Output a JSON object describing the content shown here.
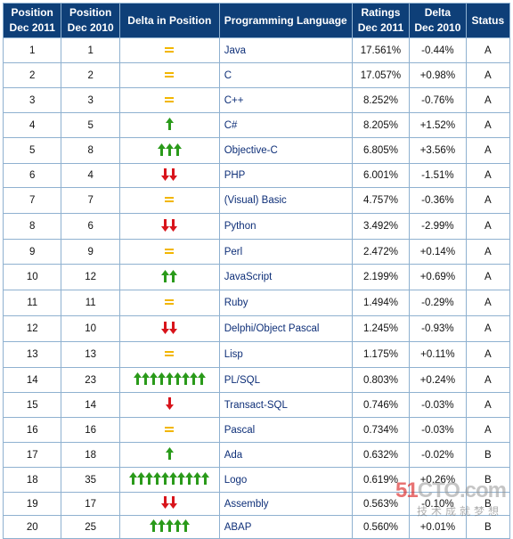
{
  "headers": {
    "pos2011": [
      "Position",
      "Dec 2011"
    ],
    "pos2010": [
      "Position",
      "Dec 2010"
    ],
    "delta_position": "Delta in Position",
    "language": "Programming Language",
    "ratings": [
      "Ratings",
      "Dec 2011"
    ],
    "delta": [
      "Delta",
      "Dec 2010"
    ],
    "status": "Status"
  },
  "colors": {
    "header_bg": "#0e3f78",
    "up": "#2a9a1a",
    "down": "#d8141b",
    "same": "#f2b600",
    "border": "#8fb1d0"
  },
  "rows": [
    {
      "pos2011": "1",
      "pos2010": "1",
      "change": {
        "dir": "same",
        "count": 1
      },
      "language": "Java",
      "rating": "17.561%",
      "delta": "-0.44%",
      "status": "A"
    },
    {
      "pos2011": "2",
      "pos2010": "2",
      "change": {
        "dir": "same",
        "count": 1
      },
      "language": "C",
      "rating": "17.057%",
      "delta": "+0.98%",
      "status": "A"
    },
    {
      "pos2011": "3",
      "pos2010": "3",
      "change": {
        "dir": "same",
        "count": 1
      },
      "language": "C++",
      "rating": "8.252%",
      "delta": "-0.76%",
      "status": "A"
    },
    {
      "pos2011": "4",
      "pos2010": "5",
      "change": {
        "dir": "up",
        "count": 1
      },
      "language": "C#",
      "rating": "8.205%",
      "delta": "+1.52%",
      "status": "A"
    },
    {
      "pos2011": "5",
      "pos2010": "8",
      "change": {
        "dir": "up",
        "count": 3
      },
      "language": "Objective-C",
      "rating": "6.805%",
      "delta": "+3.56%",
      "status": "A"
    },
    {
      "pos2011": "6",
      "pos2010": "4",
      "change": {
        "dir": "down",
        "count": 2
      },
      "language": "PHP",
      "rating": "6.001%",
      "delta": "-1.51%",
      "status": "A"
    },
    {
      "pos2011": "7",
      "pos2010": "7",
      "change": {
        "dir": "same",
        "count": 1
      },
      "language": "(Visual) Basic",
      "rating": "4.757%",
      "delta": "-0.36%",
      "status": "A"
    },
    {
      "pos2011": "8",
      "pos2010": "6",
      "change": {
        "dir": "down",
        "count": 2
      },
      "language": "Python",
      "rating": "3.492%",
      "delta": "-2.99%",
      "status": "A"
    },
    {
      "pos2011": "9",
      "pos2010": "9",
      "change": {
        "dir": "same",
        "count": 1
      },
      "language": "Perl",
      "rating": "2.472%",
      "delta": "+0.14%",
      "status": "A"
    },
    {
      "pos2011": "10",
      "pos2010": "12",
      "change": {
        "dir": "up",
        "count": 2
      },
      "language": "JavaScript",
      "rating": "2.199%",
      "delta": "+0.69%",
      "status": "A"
    },
    {
      "pos2011": "11",
      "pos2010": "11",
      "change": {
        "dir": "same",
        "count": 1
      },
      "language": "Ruby",
      "rating": "1.494%",
      "delta": "-0.29%",
      "status": "A"
    },
    {
      "pos2011": "12",
      "pos2010": "10",
      "change": {
        "dir": "down",
        "count": 2
      },
      "language": "Delphi/Object Pascal",
      "rating": "1.245%",
      "delta": "-0.93%",
      "status": "A"
    },
    {
      "pos2011": "13",
      "pos2010": "13",
      "change": {
        "dir": "same",
        "count": 1
      },
      "language": "Lisp",
      "rating": "1.175%",
      "delta": "+0.11%",
      "status": "A"
    },
    {
      "pos2011": "14",
      "pos2010": "23",
      "change": {
        "dir": "up",
        "count": 9
      },
      "language": "PL/SQL",
      "rating": "0.803%",
      "delta": "+0.24%",
      "status": "A"
    },
    {
      "pos2011": "15",
      "pos2010": "14",
      "change": {
        "dir": "down",
        "count": 1
      },
      "language": "Transact-SQL",
      "rating": "0.746%",
      "delta": "-0.03%",
      "status": "A"
    },
    {
      "pos2011": "16",
      "pos2010": "16",
      "change": {
        "dir": "same",
        "count": 1
      },
      "language": "Pascal",
      "rating": "0.734%",
      "delta": "-0.03%",
      "status": "A"
    },
    {
      "pos2011": "17",
      "pos2010": "18",
      "change": {
        "dir": "up",
        "count": 1
      },
      "language": "Ada",
      "rating": "0.632%",
      "delta": "-0.02%",
      "status": "B"
    },
    {
      "pos2011": "18",
      "pos2010": "35",
      "change": {
        "dir": "up",
        "count": 10
      },
      "language": "Logo",
      "rating": "0.619%",
      "delta": "+0.26%",
      "status": "B"
    },
    {
      "pos2011": "19",
      "pos2010": "17",
      "change": {
        "dir": "down",
        "count": 2
      },
      "language": "Assembly",
      "rating": "0.563%",
      "delta": "-0.10%",
      "status": "B"
    },
    {
      "pos2011": "20",
      "pos2010": "25",
      "change": {
        "dir": "up",
        "count": 5
      },
      "language": "ABAP",
      "rating": "0.560%",
      "delta": "+0.01%",
      "status": "B"
    }
  ],
  "watermark": {
    "top_red": "51",
    "top_grey": "CTO.com",
    "bottom": "技术成就梦想"
  }
}
